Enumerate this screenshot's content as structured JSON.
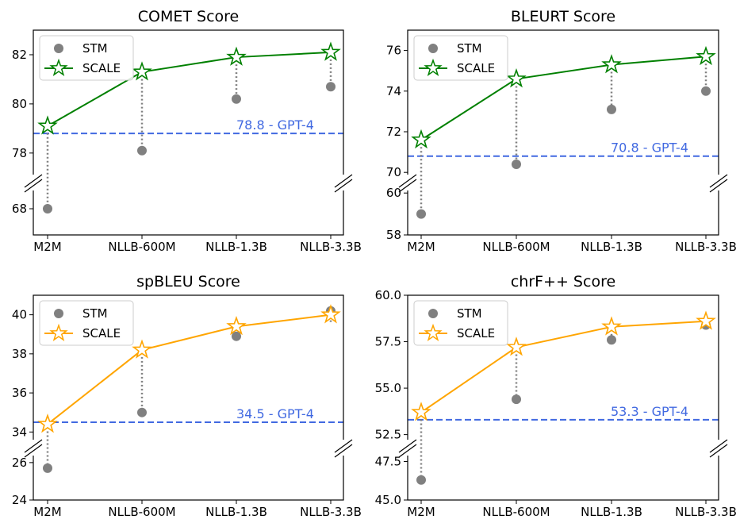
{
  "x_categories": [
    "M2M",
    "NLLB-600M",
    "NLLB-1.3B",
    "NLLB-3.3B"
  ],
  "colors": {
    "stm": "#808080",
    "gpt4_line": "#4169e1",
    "scale_green": "#008000",
    "scale_orange": "#ffa500",
    "dotted": "#808080"
  },
  "chart_data": [
    {
      "type": "line",
      "title": "COMET Score",
      "categories": [
        "M2M",
        "NLLB-600M",
        "NLLB-1.3B",
        "NLLB-3.3B"
      ],
      "series": [
        {
          "name": "STM",
          "values": [
            68.0,
            78.1,
            80.2,
            80.7
          ]
        },
        {
          "name": "SCALE",
          "values": [
            79.1,
            81.3,
            81.9,
            82.1
          ]
        }
      ],
      "reference": {
        "value": 78.8,
        "label": "78.8 - GPT-4"
      },
      "broken_axis": {
        "upper_range": [
          76.8,
          83.0
        ],
        "lower_range": [
          67.0,
          69.0
        ]
      },
      "upper_ticks": [
        "78",
        "80",
        "82"
      ],
      "lower_ticks": [
        "68"
      ],
      "scale_color": "green",
      "legend_position": "top-left"
    },
    {
      "type": "line",
      "title": "BLEURT Score",
      "categories": [
        "M2M",
        "NLLB-600M",
        "NLLB-1.3B",
        "NLLB-3.3B"
      ],
      "series": [
        {
          "name": "STM",
          "values": [
            59.0,
            70.4,
            73.1,
            74.0
          ]
        },
        {
          "name": "SCALE",
          "values": [
            71.6,
            74.6,
            75.3,
            75.7
          ]
        }
      ],
      "reference": {
        "value": 70.8,
        "label": "70.8 - GPT-4"
      },
      "broken_axis": {
        "upper_range": [
          69.5,
          77.0
        ],
        "lower_range": [
          58.0,
          60.5
        ]
      },
      "upper_ticks": [
        "70",
        "72",
        "74",
        "76"
      ],
      "lower_ticks": [
        "58",
        "60"
      ],
      "scale_color": "green",
      "legend_position": "top-left"
    },
    {
      "type": "line",
      "title": "spBLEU Score",
      "categories": [
        "M2M",
        "NLLB-600M",
        "NLLB-1.3B",
        "NLLB-3.3B"
      ],
      "series": [
        {
          "name": "STM",
          "values": [
            25.7,
            35.0,
            38.9,
            40.2
          ]
        },
        {
          "name": "SCALE",
          "values": [
            34.4,
            38.2,
            39.4,
            40.0
          ]
        }
      ],
      "reference": {
        "value": 34.5,
        "label": "34.5 - GPT-4"
      },
      "broken_axis": {
        "upper_range": [
          33.2,
          41.0
        ],
        "lower_range": [
          24.0,
          26.8
        ]
      },
      "upper_ticks": [
        "34",
        "36",
        "38",
        "40"
      ],
      "lower_ticks": [
        "24",
        "26"
      ],
      "scale_color": "orange",
      "legend_position": "top-left"
    },
    {
      "type": "line",
      "title": "chrF++ Score",
      "categories": [
        "M2M",
        "NLLB-600M",
        "NLLB-1.3B",
        "NLLB-3.3B"
      ],
      "series": [
        {
          "name": "STM",
          "values": [
            46.3,
            54.4,
            57.6,
            58.4
          ]
        },
        {
          "name": "SCALE",
          "values": [
            53.7,
            57.2,
            58.3,
            58.6
          ]
        }
      ],
      "reference": {
        "value": 53.3,
        "label": "53.3 - GPT-4"
      },
      "broken_axis": {
        "upper_range": [
          51.8,
          60.0
        ],
        "lower_range": [
          45.0,
          48.4
        ]
      },
      "upper_ticks": [
        "52.5",
        "55.0",
        "57.5",
        "60.0"
      ],
      "lower_ticks": [
        "45.0",
        "47.5"
      ],
      "scale_color": "orange",
      "legend_position": "top-left"
    }
  ]
}
